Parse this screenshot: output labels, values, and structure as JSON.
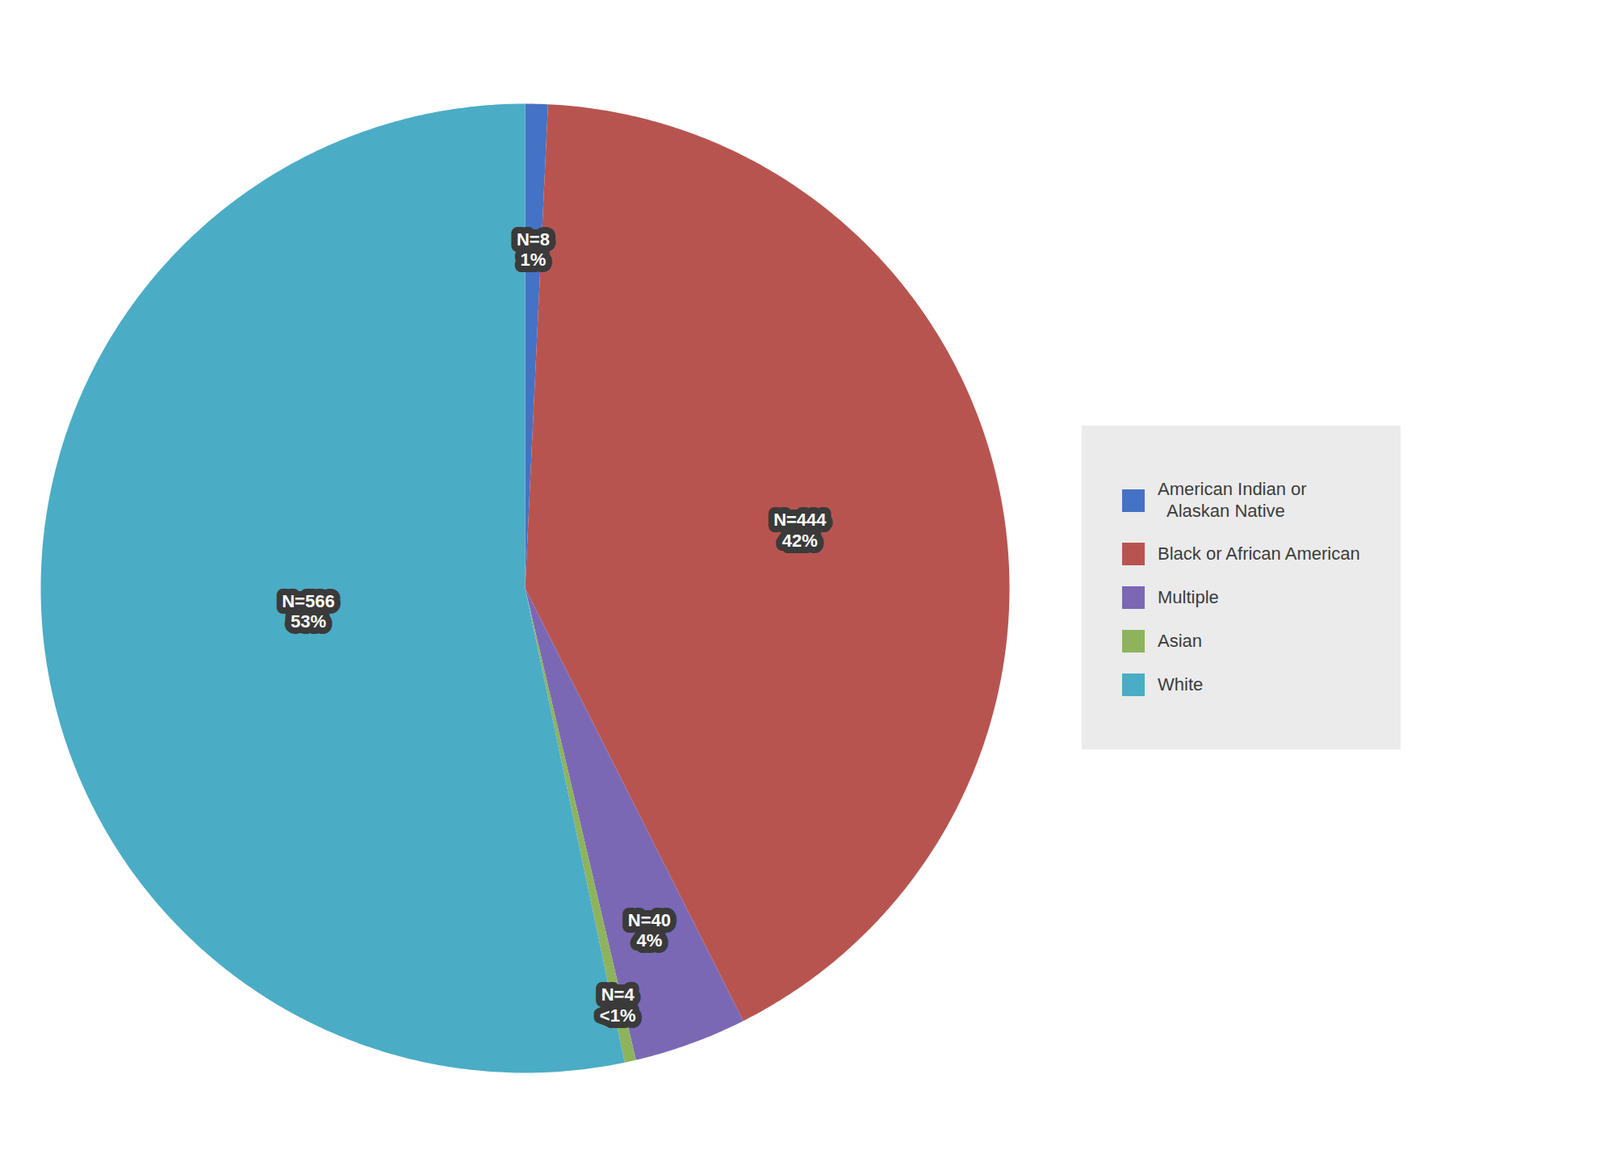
{
  "chart_data": {
    "type": "pie",
    "categories": [
      "American Indian or\n  Alaskan Native",
      "Black or African American",
      "Multiple",
      "Asian",
      "White"
    ],
    "values": [
      8,
      444,
      40,
      4,
      566
    ],
    "value_labels": [
      "N=8\n1%",
      "N=444\n42%",
      "N=40\n4%",
      "N=4\n<1%",
      "N=566\n53%"
    ],
    "colors": [
      "#4472C4",
      "#B85450",
      "#7B68B5",
      "#8DB45C",
      "#4BACC6"
    ],
    "data_labels": true,
    "legend": "right",
    "tick_labels": false
  }
}
